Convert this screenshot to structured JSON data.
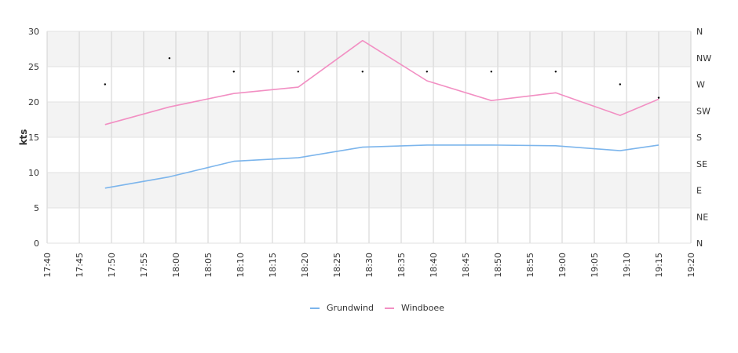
{
  "chart_data": {
    "type": "line",
    "ylabel": "kts",
    "xlabel": "",
    "title": "",
    "x_ticks": [
      "17:40",
      "17:45",
      "17:50",
      "17:55",
      "18:00",
      "18:05",
      "18:10",
      "18:15",
      "18:20",
      "18:25",
      "18:30",
      "18:35",
      "18:40",
      "18:45",
      "18:50",
      "18:55",
      "19:00",
      "19:05",
      "19:10",
      "19:15",
      "19:20"
    ],
    "x_range": [
      "17:40",
      "19:20"
    ],
    "ylim": [
      0,
      30
    ],
    "y_ticks": [
      0,
      5,
      10,
      15,
      20,
      25,
      30
    ],
    "y2_ticks": [
      "N",
      "NE",
      "E",
      "SE",
      "S",
      "SW",
      "W",
      "NW",
      "N"
    ],
    "grid": true,
    "alternating_bands": true,
    "legend_position": "bottom-center",
    "series": [
      {
        "name": "Grundwind",
        "color": "#7cb5ec",
        "points": [
          {
            "x": "17:49",
            "y": 7.8
          },
          {
            "x": "17:59",
            "y": 9.4
          },
          {
            "x": "18:09",
            "y": 11.6
          },
          {
            "x": "18:19",
            "y": 12.1
          },
          {
            "x": "18:29",
            "y": 13.6
          },
          {
            "x": "18:39",
            "y": 13.9
          },
          {
            "x": "18:49",
            "y": 13.9
          },
          {
            "x": "18:59",
            "y": 13.8
          },
          {
            "x": "19:09",
            "y": 13.1
          },
          {
            "x": "19:15",
            "y": 13.9
          }
        ]
      },
      {
        "name": "Windboee",
        "color": "#f28fc3",
        "points": [
          {
            "x": "17:49",
            "y": 16.8
          },
          {
            "x": "17:59",
            "y": 19.3
          },
          {
            "x": "18:09",
            "y": 21.2
          },
          {
            "x": "18:19",
            "y": 22.1
          },
          {
            "x": "18:29",
            "y": 28.7
          },
          {
            "x": "18:39",
            "y": 23.0
          },
          {
            "x": "18:49",
            "y": 20.2
          },
          {
            "x": "18:59",
            "y": 21.3
          },
          {
            "x": "19:09",
            "y": 18.1
          },
          {
            "x": "19:15",
            "y": 20.4
          }
        ]
      },
      {
        "name": "",
        "kind": "direction-markers",
        "color": "#000000",
        "points": [
          {
            "x": "17:49",
            "y": 22.5
          },
          {
            "x": "17:59",
            "y": 26.2
          },
          {
            "x": "18:09",
            "y": 24.3
          },
          {
            "x": "18:19",
            "y": 24.3
          },
          {
            "x": "18:29",
            "y": 24.3
          },
          {
            "x": "18:39",
            "y": 24.3
          },
          {
            "x": "18:49",
            "y": 24.3
          },
          {
            "x": "18:59",
            "y": 24.3
          },
          {
            "x": "19:09",
            "y": 22.5
          },
          {
            "x": "19:15",
            "y": 20.6
          }
        ]
      }
    ]
  }
}
